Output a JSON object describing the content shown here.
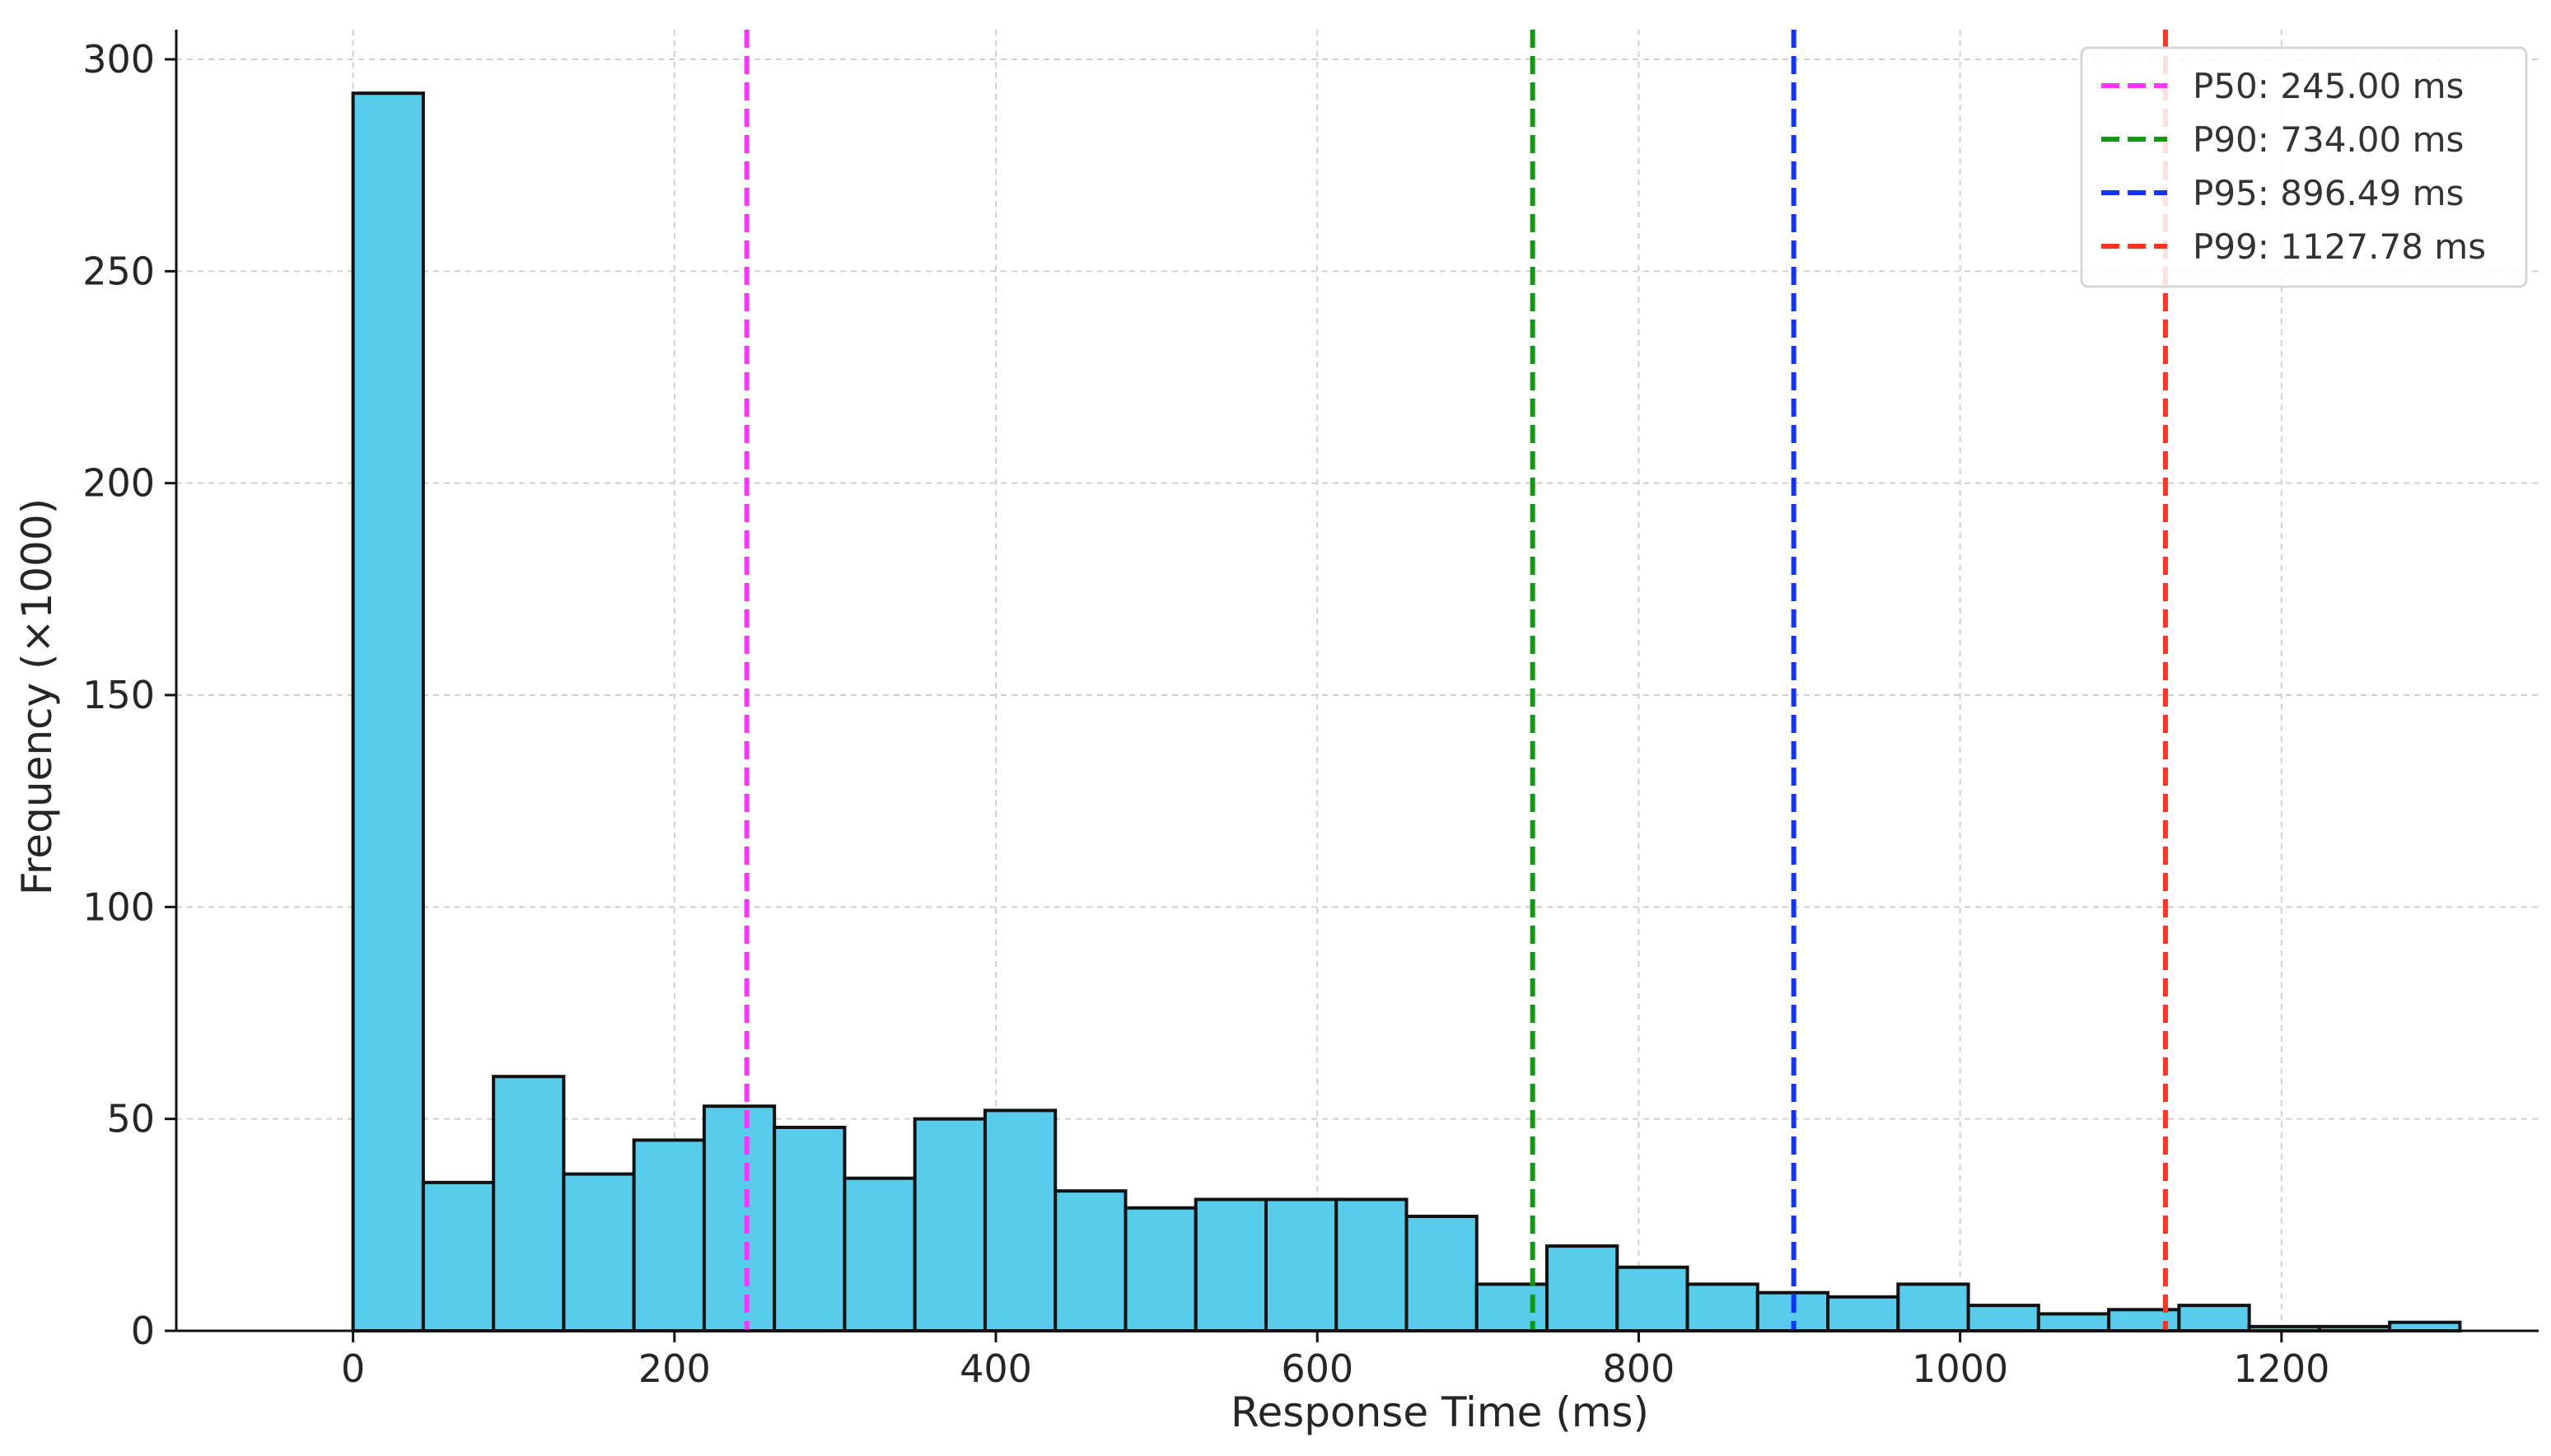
{
  "chart_data": {
    "type": "bar",
    "xlabel": "Response Time (ms)",
    "ylabel": "Frequency (×1000)",
    "xlim": [
      -110,
      1360
    ],
    "ylim": [
      0,
      307
    ],
    "grid": true,
    "legend_position": "top-right",
    "bar_color": "#57CCEB",
    "bin_width": 43.7,
    "bins": [
      {
        "start": 0,
        "end": 43.7,
        "value": 292
      },
      {
        "start": 43.7,
        "end": 87.4,
        "value": 35
      },
      {
        "start": 87.4,
        "end": 131.1,
        "value": 60
      },
      {
        "start": 131.1,
        "end": 174.8,
        "value": 37
      },
      {
        "start": 174.8,
        "end": 218.5,
        "value": 45
      },
      {
        "start": 218.5,
        "end": 262.2,
        "value": 53
      },
      {
        "start": 262.2,
        "end": 305.9,
        "value": 48
      },
      {
        "start": 305.9,
        "end": 349.6,
        "value": 36
      },
      {
        "start": 349.6,
        "end": 393.3,
        "value": 50
      },
      {
        "start": 393.3,
        "end": 437.0,
        "value": 52
      },
      {
        "start": 437.0,
        "end": 480.7,
        "value": 33
      },
      {
        "start": 480.7,
        "end": 524.4,
        "value": 29
      },
      {
        "start": 524.4,
        "end": 568.1,
        "value": 31
      },
      {
        "start": 568.1,
        "end": 611.8,
        "value": 31
      },
      {
        "start": 611.8,
        "end": 655.5,
        "value": 31
      },
      {
        "start": 655.5,
        "end": 699.2,
        "value": 27
      },
      {
        "start": 699.2,
        "end": 742.9,
        "value": 11
      },
      {
        "start": 742.9,
        "end": 786.6,
        "value": 20
      },
      {
        "start": 786.6,
        "end": 830.3,
        "value": 15
      },
      {
        "start": 830.3,
        "end": 874.0,
        "value": 11
      },
      {
        "start": 874.0,
        "end": 917.7,
        "value": 9
      },
      {
        "start": 917.7,
        "end": 961.4,
        "value": 8
      },
      {
        "start": 961.4,
        "end": 1005.1,
        "value": 11
      },
      {
        "start": 1005.1,
        "end": 1048.8,
        "value": 6
      },
      {
        "start": 1048.8,
        "end": 1092.5,
        "value": 4
      },
      {
        "start": 1092.5,
        "end": 1136.2,
        "value": 5
      },
      {
        "start": 1136.2,
        "end": 1179.9,
        "value": 6
      },
      {
        "start": 1179.9,
        "end": 1223.6,
        "value": 1
      },
      {
        "start": 1223.6,
        "end": 1267.3,
        "value": 1
      },
      {
        "start": 1267.3,
        "end": 1311.0,
        "value": 2
      }
    ],
    "x_ticks": [
      0,
      200,
      400,
      600,
      800,
      1000,
      1200
    ],
    "y_ticks": [
      0,
      50,
      100,
      150,
      200,
      250,
      300
    ],
    "percentiles": [
      {
        "name": "P50: 245.00 ms",
        "value": 245.0,
        "color": "#FF33FF"
      },
      {
        "name": "P90: 734.00 ms",
        "value": 734.0,
        "color": "#119911"
      },
      {
        "name": "P95: 896.49 ms",
        "value": 896.49,
        "color": "#1133FF"
      },
      {
        "name": "P99: 1127.78 ms",
        "value": 1127.78,
        "color": "#FF3322"
      }
    ]
  }
}
